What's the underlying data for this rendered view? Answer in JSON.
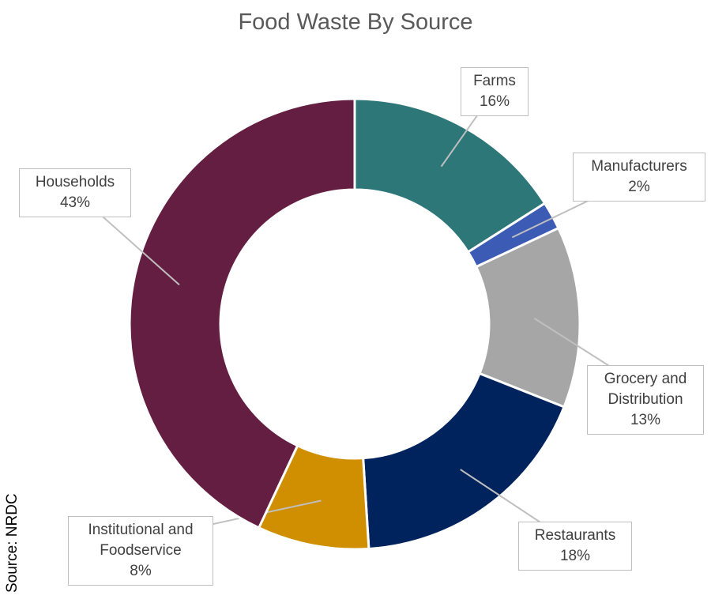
{
  "chart_data": {
    "type": "donut",
    "title": "Food Waste By Source",
    "categories": [
      "Farms",
      "Manufacturers",
      "Grocery and Distribution",
      "Restaurants",
      "Institutional and Foodservice",
      "Households"
    ],
    "values": [
      16,
      2,
      13,
      18,
      8,
      43
    ],
    "value_labels": [
      "16%",
      "2%",
      "13%",
      "18%",
      "8%",
      "43%"
    ],
    "colors": [
      "#2e7779",
      "#3b5bb5",
      "#a5a6a5",
      "#00235d",
      "#d08f00",
      "#641e42"
    ],
    "source": "Source: NRDC"
  }
}
